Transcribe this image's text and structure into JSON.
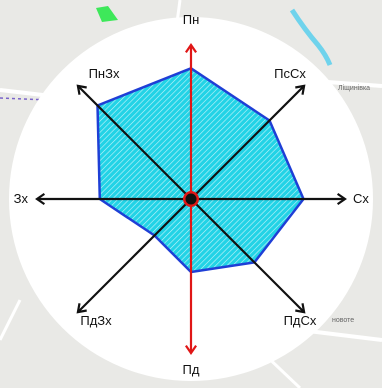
{
  "map": {
    "colors": {
      "land": "#e9e9e6",
      "road": "#ffffff",
      "road_edge": "#c9c9c9",
      "water": "#6fd3ec",
      "green": "#3ee85a",
      "boundary": "#7a63c9"
    },
    "place_labels": [
      "Ліщинівка",
      "новоте"
    ]
  },
  "wind_rose": {
    "colors": {
      "disk": "#ffffff",
      "polygon_fill": "#22d3e6",
      "polygon_hatch": "#c8f4fa",
      "polygon_stroke": "#1f3fd6",
      "meridian": "#e01616",
      "axes": "#111111",
      "center": "#111111",
      "center_ring": "#e01616"
    },
    "directions": [
      {
        "key": "N",
        "label": "Пн",
        "value": 0.86
      },
      {
        "key": "NE",
        "label": "ПсСх",
        "value": 0.73
      },
      {
        "key": "E",
        "label": "Сх",
        "value": 0.74
      },
      {
        "key": "SE",
        "label": "ПдСх",
        "value": 0.59
      },
      {
        "key": "S",
        "label": "Пд",
        "value": 0.48
      },
      {
        "key": "SW",
        "label": "ПдЗх",
        "value": 0.34
      },
      {
        "key": "W",
        "label": "Зх",
        "value": 0.6
      },
      {
        "key": "NW",
        "label": "ПнЗх",
        "value": 0.87
      }
    ]
  }
}
